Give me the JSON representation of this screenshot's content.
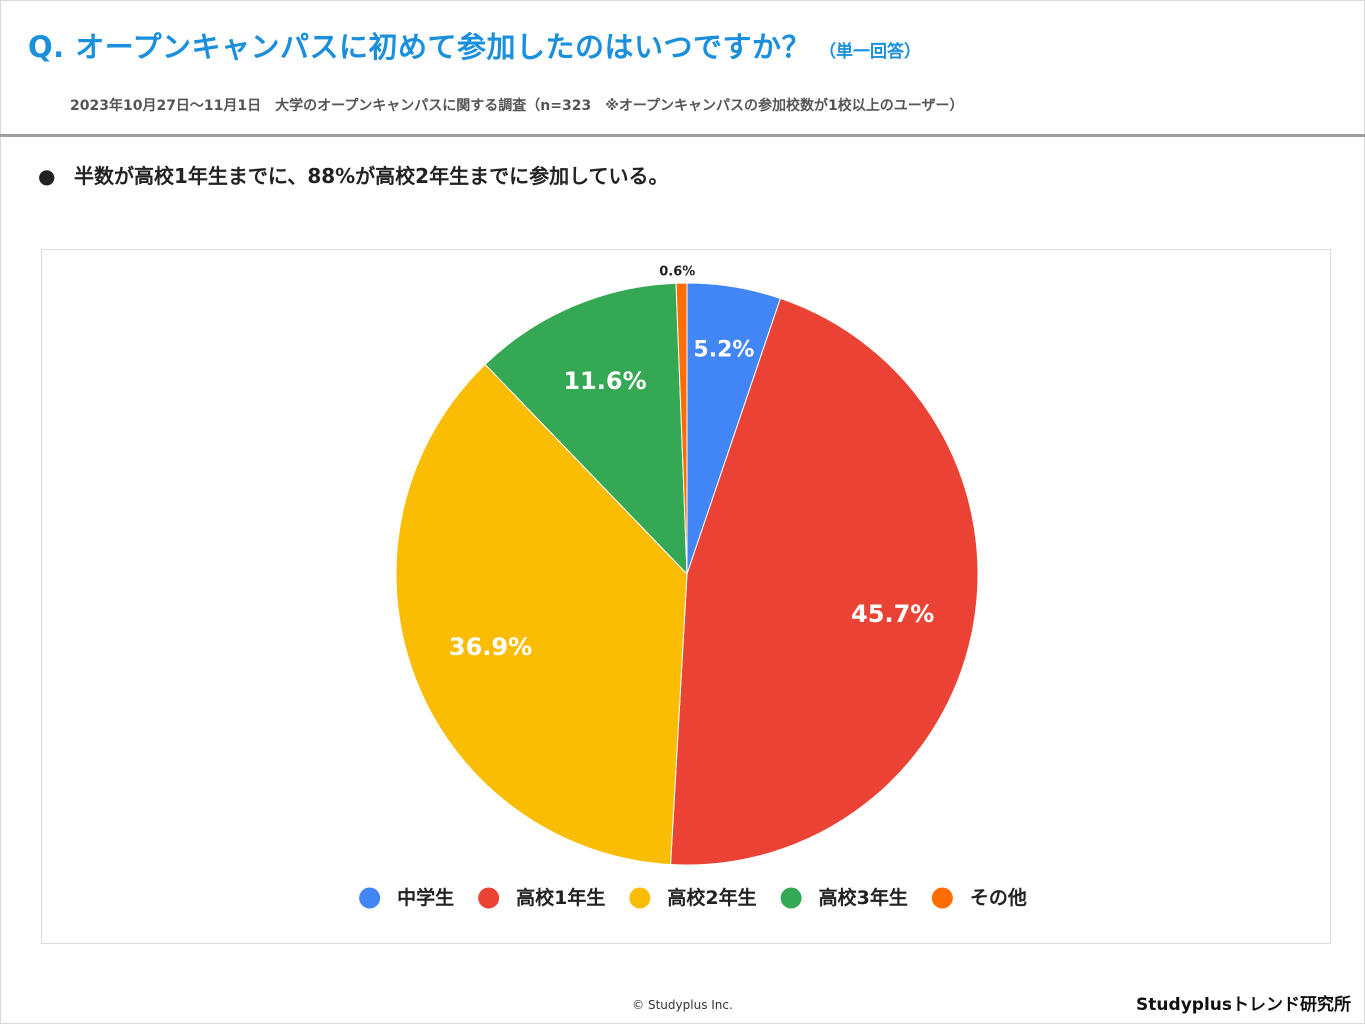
{
  "header": {
    "title": "Q. オープンキャンパスに初めて参加したのはいつですか？",
    "title_note": "（単一回答）",
    "subtitle": "2023年10月27日〜11月1日　大学のオープンキャンパスに関する調査（n=323　※オープンキャンパスの参加校数が1校以上のユーザー）"
  },
  "finding": {
    "bullet": "●",
    "text": "半数が高校1年生までに、88%が高校2年生までに参加している。"
  },
  "chart_data": {
    "type": "pie",
    "title": "",
    "start_angle_deg": 0,
    "direction": "clockwise",
    "legend_position": "bottom",
    "slices": [
      {
        "label": "中学生",
        "value": 5.2,
        "data_label": "5.2%",
        "color": "#4285f4"
      },
      {
        "label": "高校1年生",
        "value": 45.7,
        "data_label": "45.7%",
        "color": "#ea4335"
      },
      {
        "label": "高校2年生",
        "value": 36.9,
        "data_label": "36.9%",
        "color": "#fbbc04"
      },
      {
        "label": "高校3年生",
        "value": 11.6,
        "data_label": "11.6%",
        "color": "#34a853"
      },
      {
        "label": "その他",
        "value": 0.6,
        "data_label": "0.6%",
        "color": "#ff6d01"
      }
    ]
  },
  "footer": {
    "copyright": "© Studyplus Inc.",
    "brand": "Studyplusトレンド研究所"
  }
}
